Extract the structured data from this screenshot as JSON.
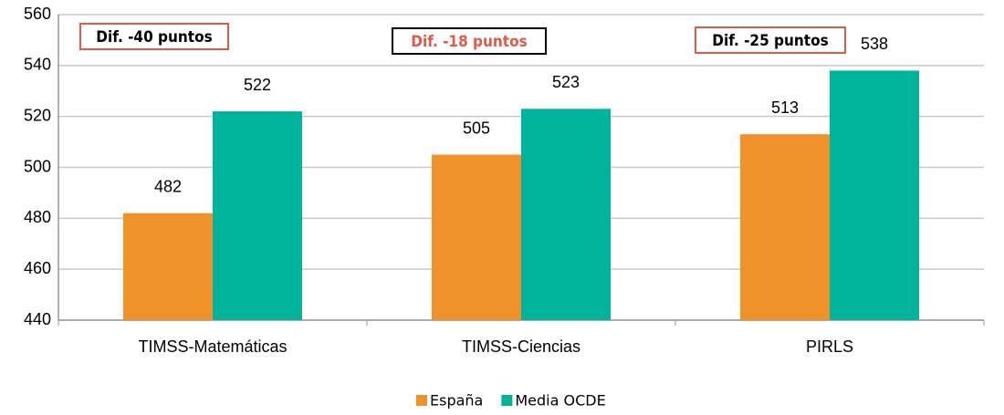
{
  "chart_data": {
    "type": "bar",
    "categories": [
      "TIMSS-Matemáticas",
      "TIMSS-Ciencias",
      "PIRLS"
    ],
    "series": [
      {
        "name": "España",
        "color": "#f0912a",
        "values": [
          482,
          505,
          513
        ]
      },
      {
        "name": "Media OCDE",
        "color": "#00b39a",
        "values": [
          522,
          523,
          538
        ]
      }
    ],
    "ylim": [
      440,
      560
    ],
    "yticks": [
      440,
      460,
      480,
      500,
      520,
      540,
      560
    ],
    "grid": true,
    "annotations": [
      {
        "text": "Dif. -40 puntos",
        "border": "#e05a47",
        "color": "#000000"
      },
      {
        "text": "Dif. -18 puntos",
        "border": "#000000",
        "color": "#e05a47"
      },
      {
        "text": "Dif. -25 puntos",
        "border": "#e05a47",
        "color": "#000000"
      }
    ]
  }
}
